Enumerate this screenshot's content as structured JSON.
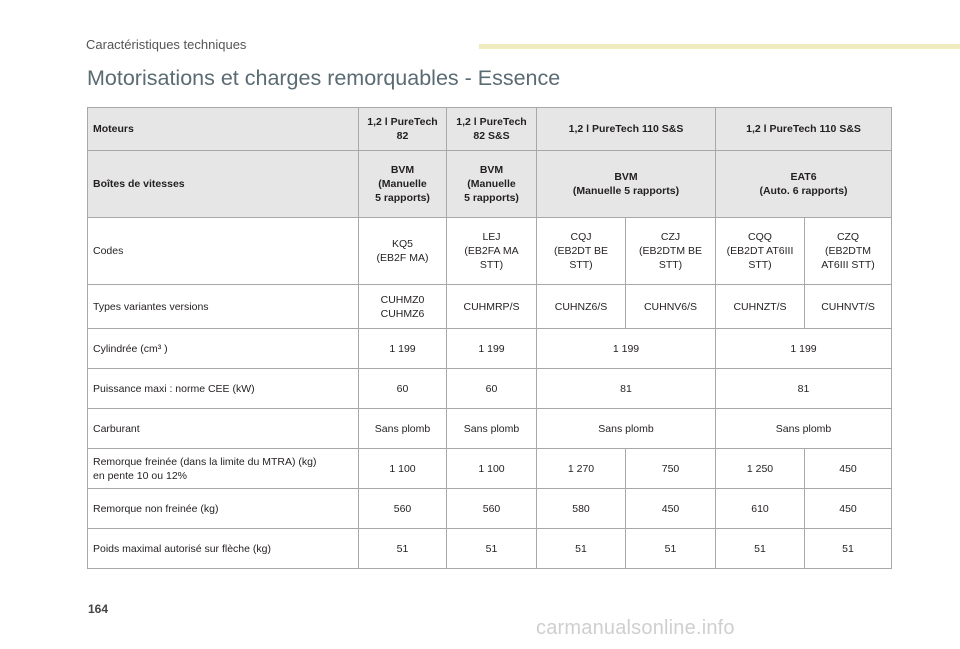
{
  "header": {
    "section": "Caractéristiques techniques"
  },
  "title": "Motorisations et charges remorquables - Essence",
  "table": {
    "moteurs": {
      "label": "Moteurs",
      "c1": "1,2 l PureTech\n82",
      "c2": "1,2 l PureTech\n82 S&S",
      "c3": "1,2 l PureTech 110 S&S",
      "c4": "1,2 l PureTech 110 S&S"
    },
    "boites": {
      "label": "Boîtes de vitesses",
      "c1": "BVM\n(Manuelle\n5 rapports)",
      "c2": "BVM\n(Manuelle\n5 rapports)",
      "c3": "BVM\n(Manuelle 5 rapports)",
      "c4": "EAT6\n(Auto. 6 rapports)"
    },
    "codes": {
      "label": "Codes",
      "v": [
        "KQ5\n(EB2F MA)",
        "LEJ\n(EB2FA MA\nSTT)",
        "CQJ\n(EB2DT BE\nSTT)",
        "CZJ\n(EB2DTM BE\nSTT)",
        "CQQ\n(EB2DT AT6III\nSTT)",
        "CZQ\n(EB2DTM\nAT6III STT)"
      ]
    },
    "types": {
      "label": "Types variantes versions",
      "v": [
        "CUHMZ0\nCUHMZ6",
        "CUHMRP/S",
        "CUHNZ6/S",
        "CUHNV6/S",
        "CUHNZT/S",
        "CUHNVT/S"
      ]
    },
    "cylindree": {
      "label": "Cylindrée (cm³ )",
      "v": [
        "1 199",
        "1 199",
        "1 199",
        "1 199"
      ]
    },
    "puissance": {
      "label": "Puissance maxi : norme CEE (kW)",
      "v": [
        "60",
        "60",
        "81",
        "81"
      ]
    },
    "carburant": {
      "label": "Carburant",
      "v": [
        "Sans plomb",
        "Sans plomb",
        "Sans plomb",
        "Sans plomb"
      ]
    },
    "remorque_freinee": {
      "label": "Remorque freinée (dans la limite du MTRA) (kg)\nen pente 10 ou 12%",
      "v": [
        "1 100",
        "1 100",
        "1 270",
        "750",
        "1 250",
        "450"
      ]
    },
    "remorque_non_freinee": {
      "label": "Remorque non freinée (kg)",
      "v": [
        "560",
        "560",
        "580",
        "450",
        "610",
        "450"
      ]
    },
    "poids_fleche": {
      "label": "Poids maximal autorisé sur flèche (kg)",
      "v": [
        "51",
        "51",
        "51",
        "51",
        "51",
        "51"
      ]
    }
  },
  "footer": {
    "page_number": "164",
    "watermark": "carmanualsonline.info"
  }
}
